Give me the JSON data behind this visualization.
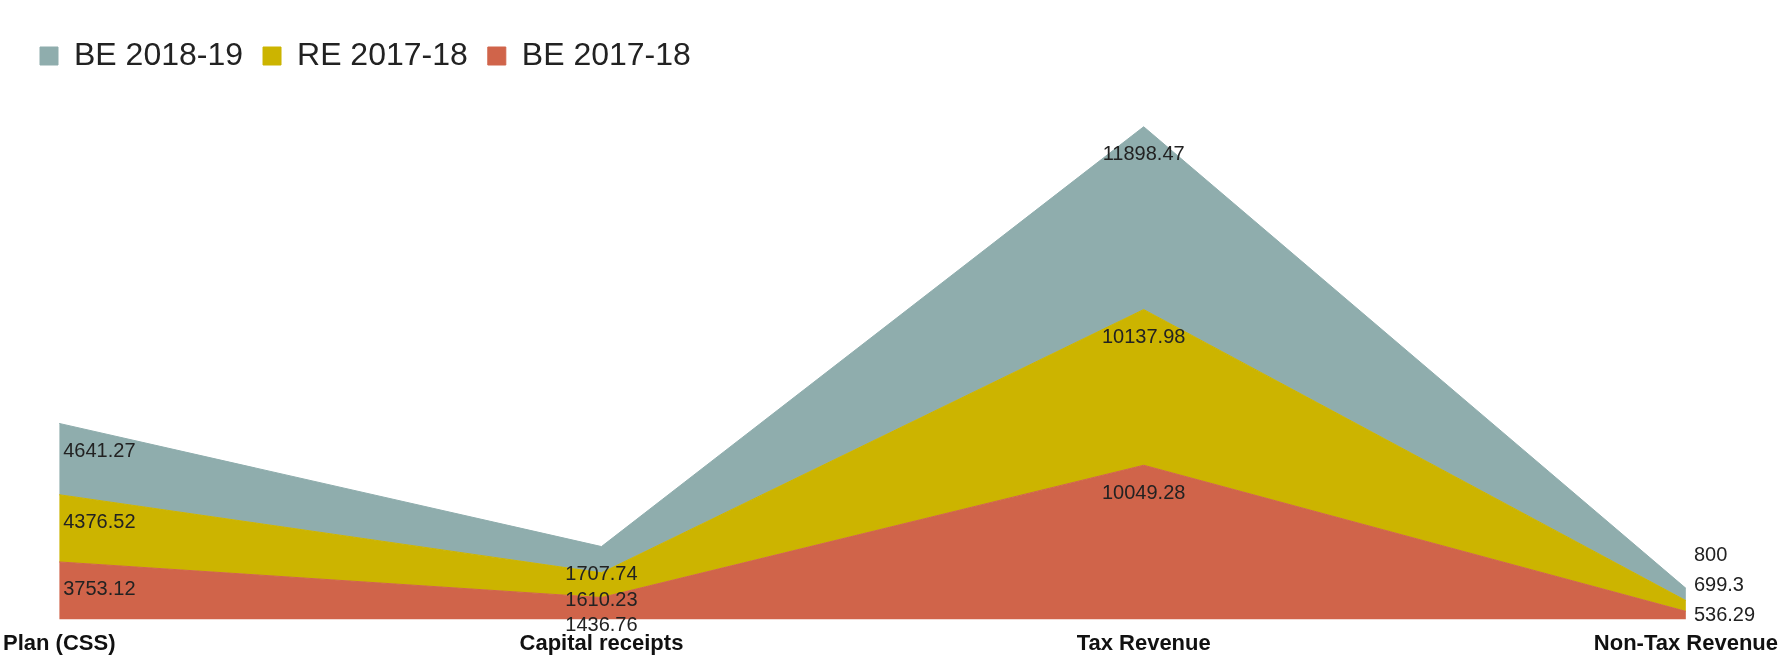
{
  "chart_data": {
    "type": "area",
    "stacked": true,
    "data_labels": true,
    "legend": "top left",
    "grid": false,
    "tick_labels": "x",
    "categories": [
      "Plan (CSS)",
      "Capital receipts",
      "Tax Revenue",
      "Non-Tax Revenue"
    ],
    "series": [
      {
        "name": "BE 2017-18",
        "color": "#d0644a",
        "values": [
          3753.12,
          1436.76,
          10049.28,
          536.29
        ]
      },
      {
        "name": "RE 2017-18",
        "color": "#ccb400",
        "values": [
          4376.52,
          1610.23,
          10137.98,
          699.3
        ]
      },
      {
        "name": "BE 2018-19",
        "color": "#8fadad",
        "values": [
          4641.27,
          1707.74,
          11898.47,
          800
        ]
      }
    ]
  }
}
